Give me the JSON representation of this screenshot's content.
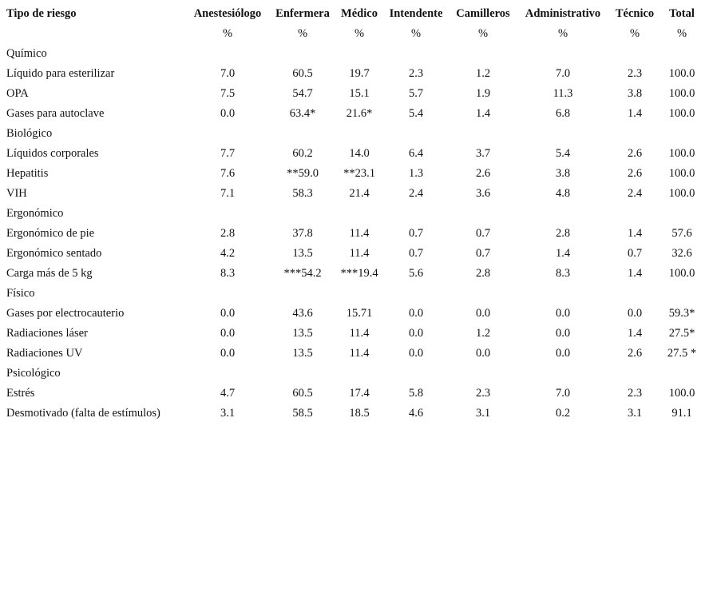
{
  "table": {
    "header": [
      "Tipo de riesgo",
      "Anestesiólogo",
      "Enfermera",
      "Médico",
      "Intendente",
      "Camilleros",
      "Administrativo",
      "Técnico",
      "Total"
    ],
    "units": [
      "%",
      "%",
      "%",
      "%",
      "%",
      "%",
      "%",
      "%"
    ],
    "rows": [
      [
        "Químico"
      ],
      [
        "Líquido para esterilizar",
        "7.0",
        "60.5",
        "19.7",
        "2.3",
        "1.2",
        "7.0",
        "2.3",
        "100.0"
      ],
      [
        "OPA",
        "7.5",
        "54.7",
        "15.1",
        "5.7",
        "1.9",
        "11.3",
        "3.8",
        "100.0"
      ],
      [
        "Gases para autoclave",
        "0.0",
        "63.4*",
        "21.6*",
        "5.4",
        "1.4",
        "6.8",
        "1.4",
        "100.0"
      ],
      [
        "Biológico"
      ],
      [
        "Líquidos corporales",
        "7.7",
        "60.2",
        "14.0",
        "6.4",
        "3.7",
        "5.4",
        "2.6",
        "100.0"
      ],
      [
        "Hepatitis",
        "7.6",
        "**59.0",
        "**23.1",
        "1.3",
        "2.6",
        "3.8",
        "2.6",
        "100.0"
      ],
      [
        "VIH",
        "7.1",
        "58.3",
        "21.4",
        "2.4",
        "3.6",
        "4.8",
        "2.4",
        "100.0"
      ],
      [
        "Ergonómico"
      ],
      [
        "Ergonómico de pie",
        "2.8",
        "37.8",
        "11.4",
        "0.7",
        "0.7",
        "2.8",
        "1.4",
        "57.6"
      ],
      [
        "Ergonómico sentado",
        "4.2",
        "13.5",
        "11.4",
        "0.7",
        "0.7",
        "1.4",
        "0.7",
        "32.6"
      ],
      [
        "Carga más de 5 kg",
        "8.3",
        "***54.2",
        "***19.4",
        "5.6",
        "2.8",
        "8.3",
        "1.4",
        "100.0"
      ],
      [
        "Físico"
      ],
      [
        "Gases por electrocauterio",
        "0.0",
        "43.6",
        "15.71",
        "0.0",
        "0.0",
        "0.0",
        "0.0",
        "59.3*"
      ],
      [
        "Radiaciones láser",
        "0.0",
        "13.5",
        "11.4",
        "0.0",
        "1.2",
        "0.0",
        "1.4",
        "27.5*"
      ],
      [
        "Radiaciones UV",
        "0.0",
        "13.5",
        "11.4",
        "0.0",
        "0.0",
        "0.0",
        "2.6",
        "27.5 *"
      ],
      [
        "Psicológico"
      ],
      [
        "Estrés",
        "4.7",
        "60.5",
        "17.4",
        "5.8",
        "2.3",
        "7.0",
        "2.3",
        "100.0"
      ],
      [
        "Desmotivado (falta de estímulos)",
        "3.1",
        "58.5",
        "18.5",
        "4.6",
        "3.1",
        "0.2",
        "3.1",
        "91.1"
      ]
    ]
  }
}
